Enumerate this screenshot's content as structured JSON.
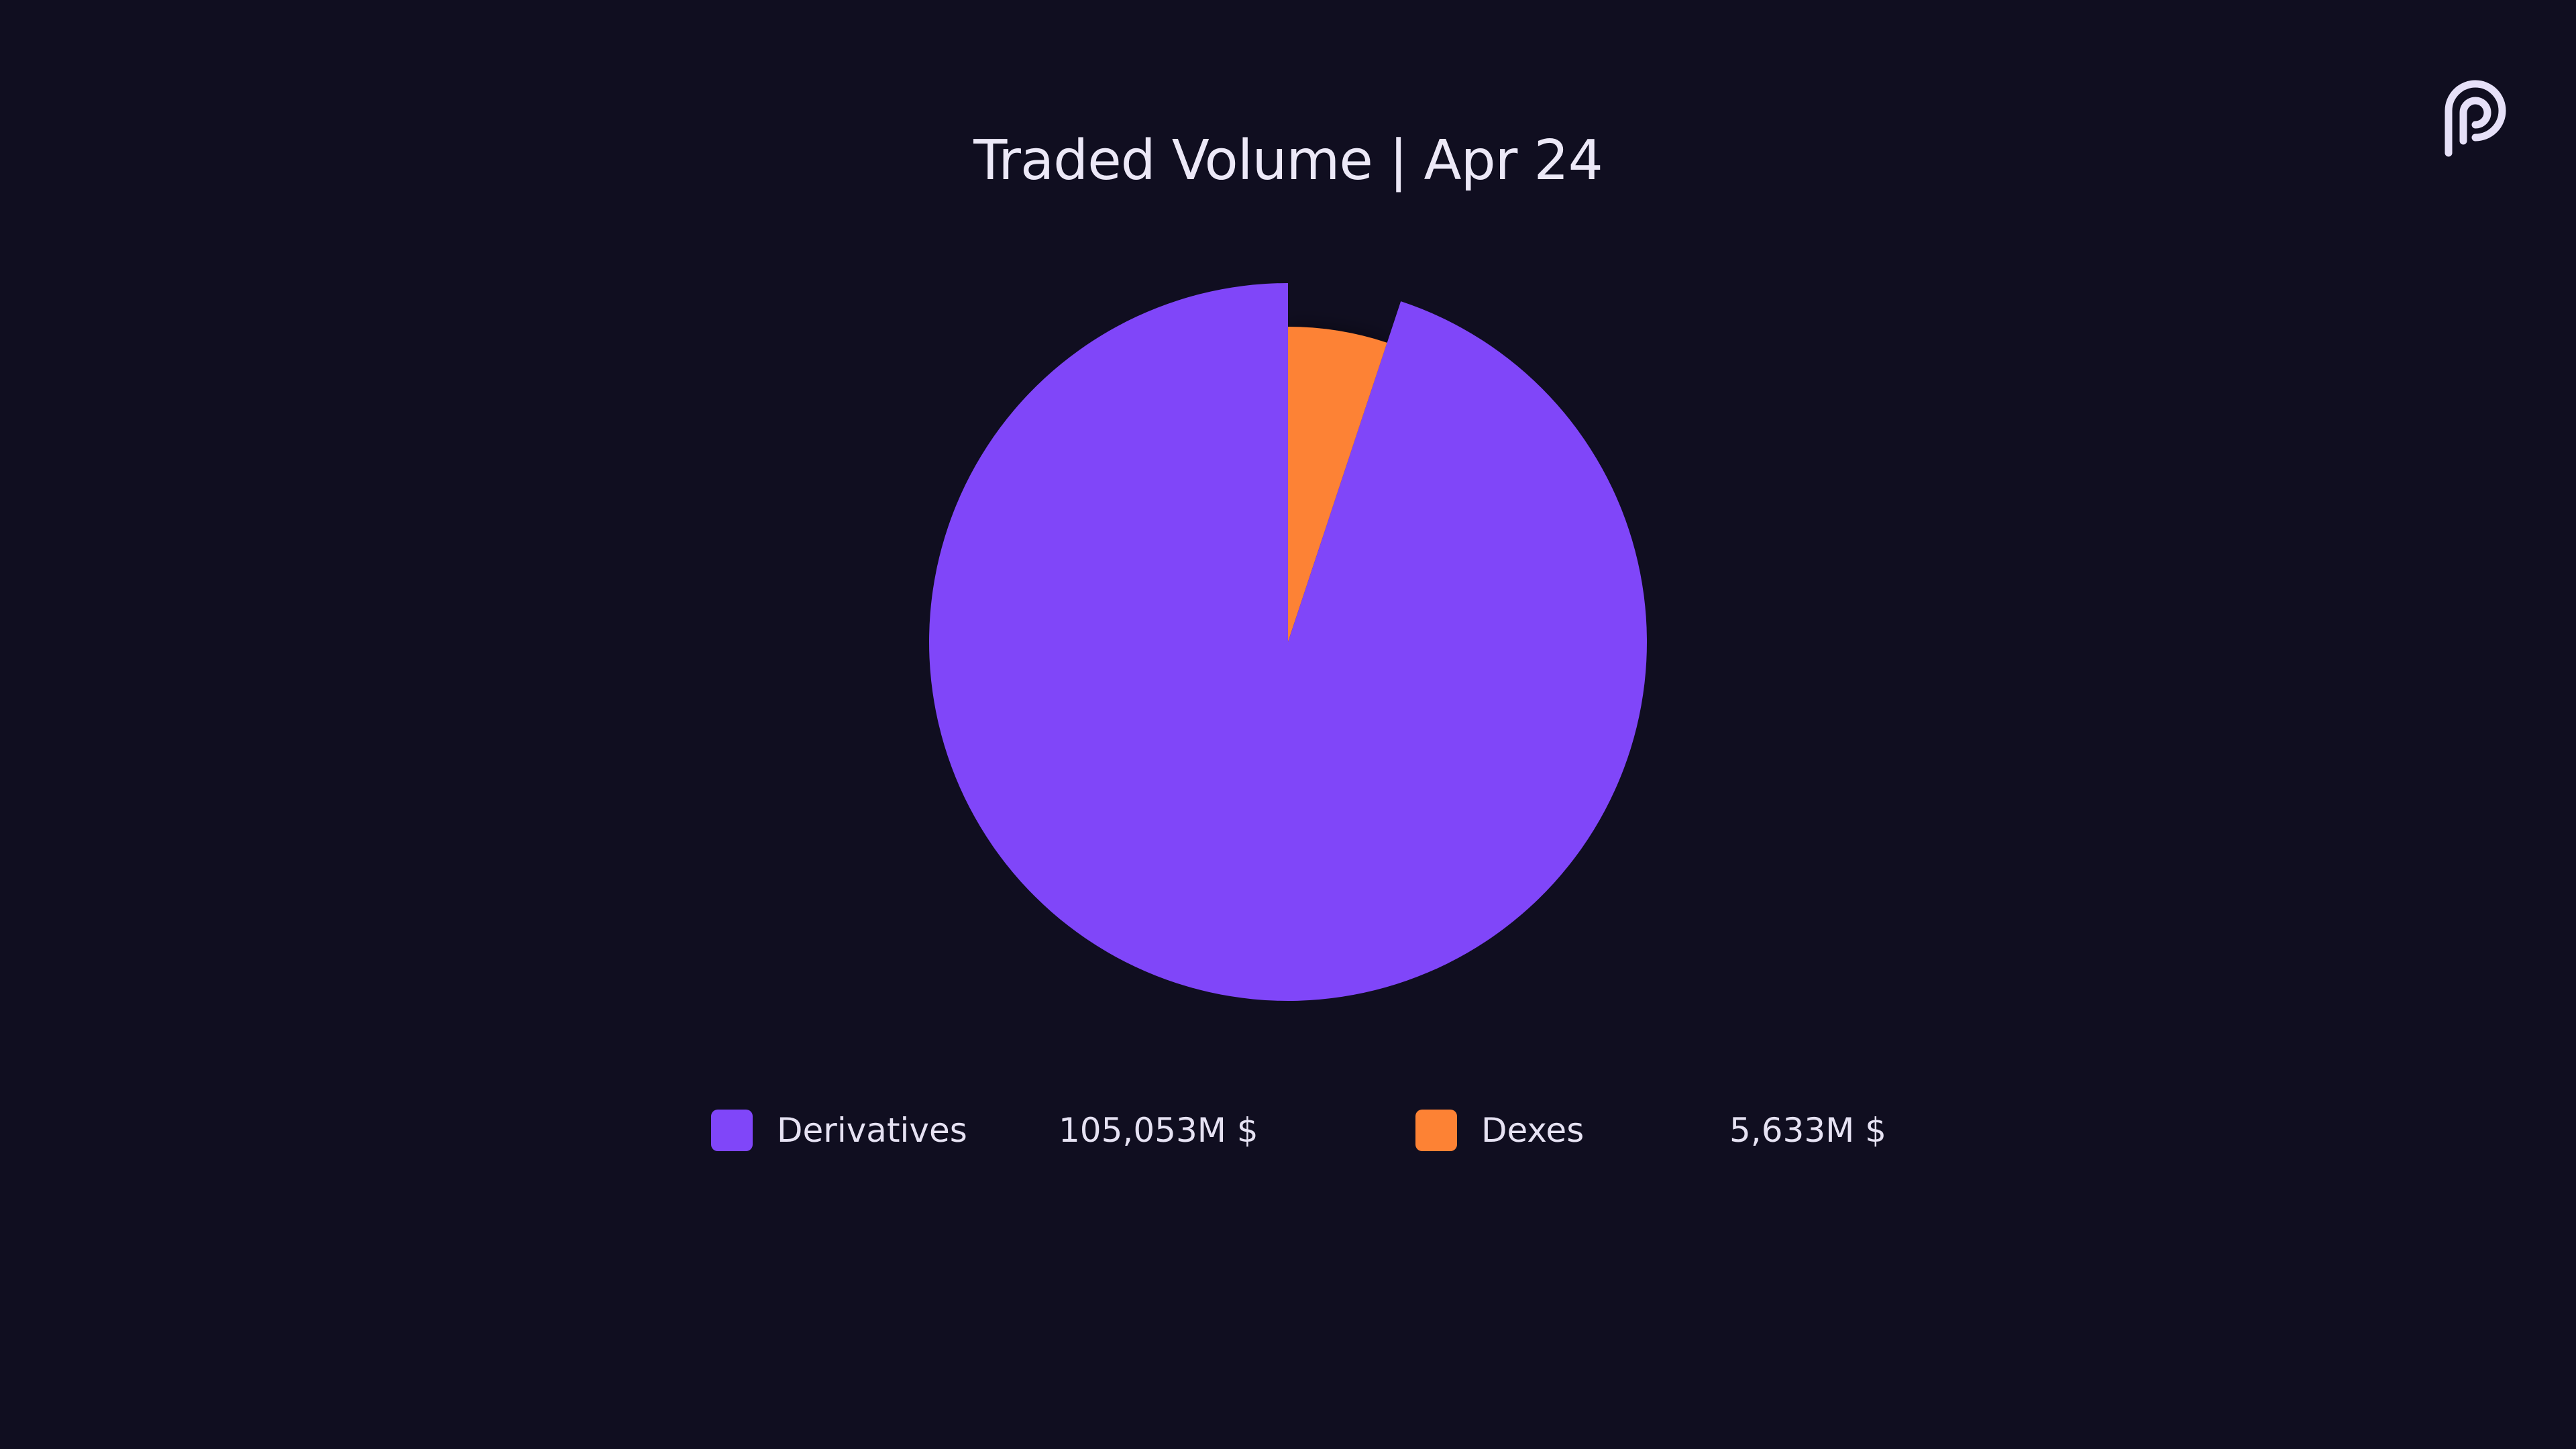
{
  "colors": {
    "background": "#100e20",
    "derivatives": "#8046f9",
    "dexes": "#fd8234",
    "text": "#ece8f7"
  },
  "logo": {
    "icon": "pyth-logo-icon"
  },
  "chart_data": {
    "type": "pie",
    "title": "Traded Volume | Apr 24",
    "unit": "M $",
    "slices": [
      {
        "label": "Derivatives",
        "value": 105053,
        "value_label": "105,053M $",
        "color": "#8046f9",
        "exploded": false
      },
      {
        "label": "Dexes",
        "value": 5633,
        "value_label": "5,633M $",
        "color": "#fd8234",
        "exploded": false
      }
    ],
    "legend_position": "bottom",
    "start_angle_deg": 0,
    "direction": "clockwise"
  }
}
